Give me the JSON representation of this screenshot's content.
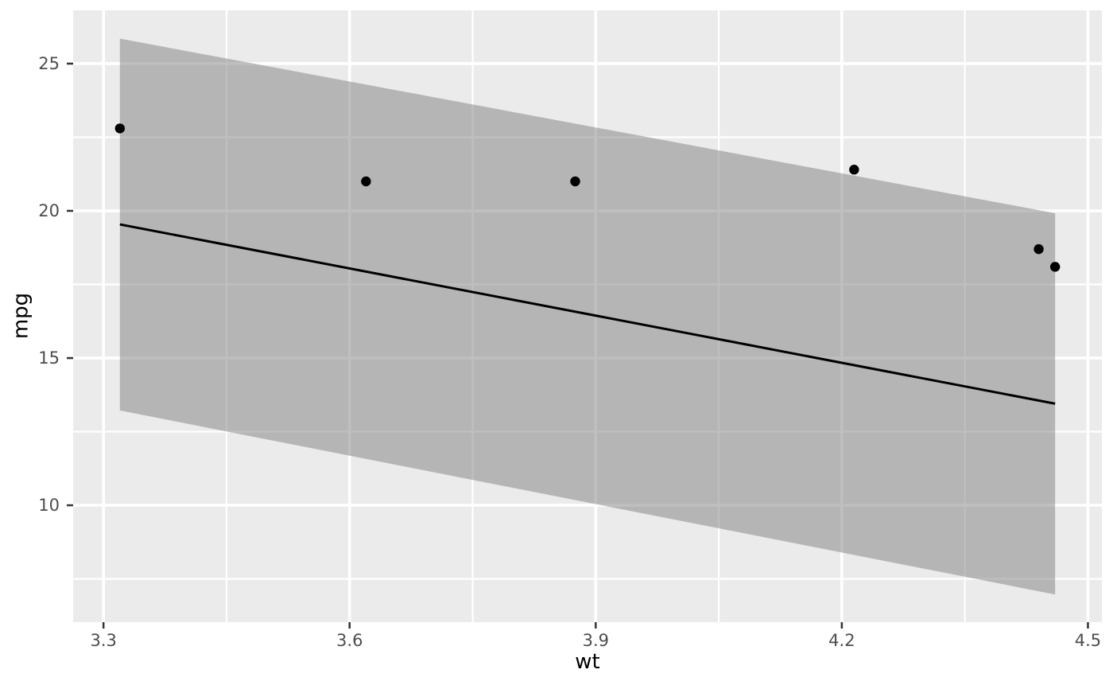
{
  "chart_data": {
    "type": "scatter",
    "title": "",
    "xlabel": "wt",
    "ylabel": "mpg",
    "xlim": [
      3.263,
      4.517
    ],
    "ylim": [
      6.03,
      26.81
    ],
    "x_ticks": {
      "values": [
        3.3,
        3.6,
        3.9,
        4.2,
        4.5
      ],
      "labels": [
        "3.3",
        "3.6",
        "3.9",
        "4.2",
        "4.5"
      ]
    },
    "y_ticks": {
      "values": [
        10,
        15,
        20,
        25
      ],
      "labels": [
        "10",
        "15",
        "20",
        "25"
      ]
    },
    "grid": {
      "major": true,
      "minor": true
    },
    "legend_position": "none",
    "points": [
      {
        "wt": 3.32,
        "mpg": 22.8
      },
      {
        "wt": 3.62,
        "mpg": 21.0
      },
      {
        "wt": 3.875,
        "mpg": 21.0
      },
      {
        "wt": 4.215,
        "mpg": 21.4
      },
      {
        "wt": 4.44,
        "mpg": 18.7
      },
      {
        "wt": 4.46,
        "mpg": 18.1
      }
    ],
    "regression_line": {
      "x": [
        3.32,
        4.46
      ],
      "y": [
        19.54,
        13.45
      ]
    },
    "ribbon": {
      "x": [
        3.32,
        4.46
      ],
      "upper": [
        25.85,
        19.92
      ],
      "lower": [
        13.22,
        6.97
      ]
    },
    "colors": {
      "panel_background": "#EBEBEB",
      "grid_line": "#FFFFFF",
      "ribbon_fill": "#808080",
      "ribbon_opacity": 0.5,
      "regression_line": "#000000",
      "point_fill": "#000000",
      "axis_text": "#4D4D4D",
      "axis_title": "#000000",
      "tick_mark": "#333333"
    }
  }
}
